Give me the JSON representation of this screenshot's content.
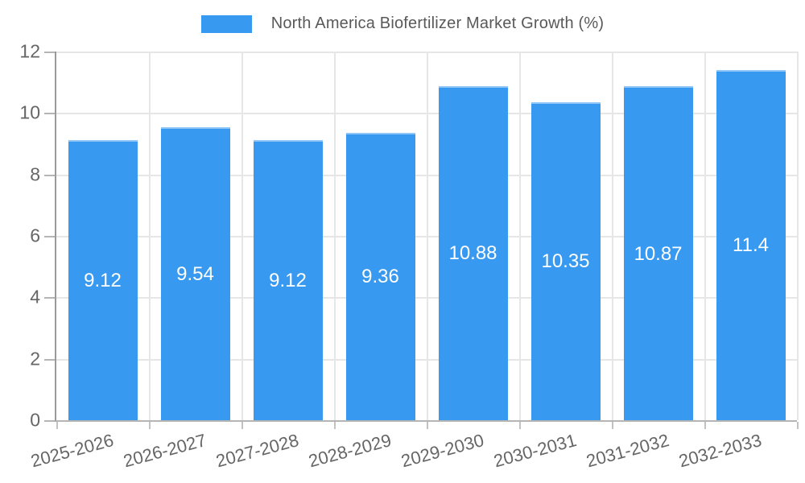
{
  "chart_data": {
    "type": "bar",
    "title": "North America Biofertilizer Market Growth (%)",
    "legend": {
      "position": "top",
      "entries": [
        "North America Biofertilizer Market Growth (%)"
      ]
    },
    "categories": [
      "2025-2026",
      "2026-2027",
      "2027-2028",
      "2028-2029",
      "2029-2030",
      "2030-2031",
      "2031-2032",
      "2032-2033"
    ],
    "values": [
      9.12,
      9.54,
      9.12,
      9.36,
      10.88,
      10.35,
      10.87,
      11.4
    ],
    "value_labels": [
      "9.12",
      "9.54",
      "9.12",
      "9.36",
      "10.88",
      "10.35",
      "10.87",
      "11.4"
    ],
    "xlabel": "",
    "ylabel": "",
    "ylim": [
      0,
      12
    ],
    "ytick_step": 2,
    "ytick_labels": [
      "0",
      "2",
      "4",
      "6",
      "8",
      "10",
      "12"
    ],
    "grid": true,
    "x_tick_label_rotation_deg": -15,
    "bar_value_label_position": "center",
    "colors": {
      "bar": "#3899f0",
      "grid": "#e6e6e6",
      "axis": "#9a9a9a",
      "tick_text": "#666666",
      "legend_text": "#595959",
      "bar_label_text": "#ffffff",
      "background": "#ffffff"
    }
  }
}
